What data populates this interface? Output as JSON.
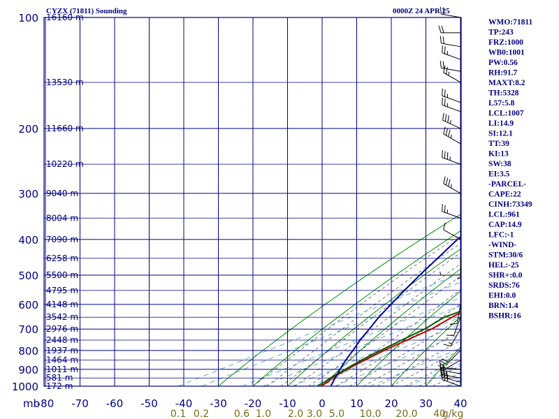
{
  "header": {
    "station": "CYZX (71811) Sounding",
    "time": "0000Z 24 APR 25"
  },
  "chart_data": {
    "type": "line",
    "title": "CYZX (71811) Sounding",
    "subtitle": "0000Z 24 APR 25",
    "x_axis_label": "mb",
    "y_scale": "log-pressure",
    "x_range": [
      -80,
      40
    ],
    "y_range_mb": [
      1000,
      100
    ],
    "grid": true,
    "pressure_ticks": [
      100,
      200,
      300,
      400,
      500,
      600,
      700,
      800,
      900,
      1000
    ],
    "pressure_tick_labels": [
      "100",
      "200",
      "300",
      "400",
      "500",
      "600",
      "700",
      "800",
      "900",
      "1000"
    ],
    "temperature_ticks": [
      -80,
      -70,
      -60,
      -50,
      -40,
      -30,
      -20,
      -10,
      0,
      10,
      20,
      30,
      40
    ],
    "temperature_tick_labels": [
      "-80",
      "-70",
      "-60",
      "-50",
      "-40",
      "-30",
      "-20",
      "-10",
      "0",
      "10",
      "20",
      "30",
      "40"
    ],
    "mixing_ratio_labels": [
      "0.1",
      "0.2",
      "0.6",
      "1.0",
      "2.0",
      "3.0",
      "5.0",
      "10.0",
      "20.0",
      "40",
      "g/kg"
    ],
    "height_labels": [
      {
        "p": 100,
        "label": "16160 m"
      },
      {
        "p": 150,
        "label": "13530 m"
      },
      {
        "p": 200,
        "label": "11660 m"
      },
      {
        "p": 250,
        "label": "10220 m"
      },
      {
        "p": 300,
        "label": "9040 m"
      },
      {
        "p": 350,
        "label": "8004 m"
      },
      {
        "p": 400,
        "label": "7090 m"
      },
      {
        "p": 450,
        "label": "6258 m"
      },
      {
        "p": 500,
        "label": "5500 m"
      },
      {
        "p": 550,
        "label": "4795 m"
      },
      {
        "p": 600,
        "label": "4148 m"
      },
      {
        "p": 650,
        "label": "3542 m"
      },
      {
        "p": 700,
        "label": "2976 m"
      },
      {
        "p": 750,
        "label": "2448 m"
      },
      {
        "p": 800,
        "label": "1937 m"
      },
      {
        "p": 850,
        "label": "1464 m"
      },
      {
        "p": 900,
        "label": "1011 m"
      },
      {
        "p": 950,
        "label": "581 m"
      },
      {
        "p": 1000,
        "label": "172 m"
      }
    ],
    "series": [
      {
        "name": "Temperature",
        "color": "#c00000",
        "points": [
          {
            "p": 1000,
            "t": -0.5
          },
          {
            "p": 975,
            "t": -1.5
          },
          {
            "p": 950,
            "t": -3.5
          },
          {
            "p": 900,
            "t": -6
          },
          {
            "p": 850,
            "t": -8
          },
          {
            "p": 800,
            "t": -10
          },
          {
            "p": 750,
            "t": -11.5
          },
          {
            "p": 700,
            "t": -13
          },
          {
            "p": 670,
            "t": -15
          },
          {
            "p": 640,
            "t": -17
          },
          {
            "p": 600,
            "t": -16.5
          },
          {
            "p": 550,
            "t": -21
          },
          {
            "p": 500,
            "t": -26
          },
          {
            "p": 450,
            "t": -31.5
          },
          {
            "p": 400,
            "t": -36.5
          },
          {
            "p": 380,
            "t": -39
          },
          {
            "p": 350,
            "t": -43.5
          },
          {
            "p": 320,
            "t": -49
          },
          {
            "p": 300,
            "t": -51.5
          },
          {
            "p": 280,
            "t": -54
          },
          {
            "p": 260,
            "t": -56.5
          },
          {
            "p": 240,
            "t": -57.5
          },
          {
            "p": 220,
            "t": -56.5
          },
          {
            "p": 200,
            "t": -55
          },
          {
            "p": 180,
            "t": -54
          },
          {
            "p": 170,
            "t": -55
          },
          {
            "p": 160,
            "t": -54.5
          },
          {
            "p": 150,
            "t": -56
          },
          {
            "p": 140,
            "t": -57
          },
          {
            "p": 130,
            "t": -57
          },
          {
            "p": 120,
            "t": -57.5
          },
          {
            "p": 110,
            "t": -58
          },
          {
            "p": 100,
            "t": -59
          }
        ]
      },
      {
        "name": "Dewpoint",
        "color": "#006000",
        "points": [
          {
            "p": 1000,
            "t": -1.5
          },
          {
            "p": 975,
            "t": -2.5
          },
          {
            "p": 950,
            "t": -4
          },
          {
            "p": 900,
            "t": -6.5
          },
          {
            "p": 850,
            "t": -9
          },
          {
            "p": 800,
            "t": -11
          },
          {
            "p": 750,
            "t": -13
          },
          {
            "p": 700,
            "t": -15
          },
          {
            "p": 650,
            "t": -18.5
          },
          {
            "p": 600,
            "t": -18.5
          },
          {
            "p": 550,
            "t": -24
          },
          {
            "p": 500,
            "t": -28
          },
          {
            "p": 450,
            "t": -33.5
          },
          {
            "p": 400,
            "t": -40
          },
          {
            "p": 380,
            "t": -42.5
          },
          {
            "p": 350,
            "t": -48
          },
          {
            "p": 320,
            "t": -53
          },
          {
            "p": 305,
            "t": -56
          },
          {
            "p": 300,
            "t": -57
          },
          {
            "p": 290,
            "t": -59
          },
          {
            "p": 270,
            "t": -66
          },
          {
            "p": 255,
            "t": -69.5
          },
          {
            "p": 240,
            "t": -70
          },
          {
            "p": 220,
            "t": -74
          },
          {
            "p": 200,
            "t": -80
          }
        ]
      },
      {
        "name": "Parcel",
        "color": "#0000a0",
        "points": [
          {
            "p": 1000,
            "t": 2.5
          },
          {
            "p": 961,
            "t": -1.5
          },
          {
            "p": 900,
            "t": -8
          },
          {
            "p": 850,
            "t": -13.5
          },
          {
            "p": 800,
            "t": -19
          },
          {
            "p": 750,
            "t": -25
          },
          {
            "p": 700,
            "t": -31
          },
          {
            "p": 650,
            "t": -37.5
          },
          {
            "p": 600,
            "t": -44
          },
          {
            "p": 550,
            "t": -51
          },
          {
            "p": 500,
            "t": -58.5
          },
          {
            "p": 450,
            "t": -66.5
          },
          {
            "p": 400,
            "t": -75.5
          },
          {
            "p": 350,
            "t": -85
          },
          {
            "p": 300,
            "t": -96
          },
          {
            "p": 260,
            "t": -106
          }
        ]
      }
    ],
    "wind_barbs": [
      {
        "p": 1000,
        "dir": 290,
        "kt": 30
      },
      {
        "p": 975,
        "dir": 285,
        "kt": 30
      },
      {
        "p": 950,
        "dir": 280,
        "kt": 25
      },
      {
        "p": 925,
        "dir": 280,
        "kt": 20
      },
      {
        "p": 900,
        "dir": 275,
        "kt": 15
      },
      {
        "p": 850,
        "dir": 240,
        "kt": 20
      },
      {
        "p": 800,
        "dir": 225,
        "kt": 20
      },
      {
        "p": 700,
        "dir": 210,
        "kt": 15
      },
      {
        "p": 650,
        "dir": 200,
        "kt": 10
      },
      {
        "p": 600,
        "dir": 190,
        "kt": 10
      },
      {
        "p": 500,
        "dir": 270,
        "kt": 5
      },
      {
        "p": 450,
        "dir": 180,
        "kt": 5
      },
      {
        "p": 400,
        "dir": 300,
        "kt": 10
      },
      {
        "p": 350,
        "dir": 290,
        "kt": 25
      },
      {
        "p": 300,
        "dir": 300,
        "kt": 35
      },
      {
        "p": 250,
        "dir": 290,
        "kt": 35
      },
      {
        "p": 220,
        "dir": 300,
        "kt": 35
      },
      {
        "p": 200,
        "dir": 295,
        "kt": 35
      },
      {
        "p": 180,
        "dir": 290,
        "kt": 25
      },
      {
        "p": 170,
        "dir": 290,
        "kt": 25
      },
      {
        "p": 150,
        "dir": 300,
        "kt": 25
      },
      {
        "p": 140,
        "dir": 280,
        "kt": 20
      },
      {
        "p": 130,
        "dir": 290,
        "kt": 25
      },
      {
        "p": 120,
        "dir": 280,
        "kt": 20
      },
      {
        "p": 110,
        "dir": 270,
        "kt": 20
      },
      {
        "p": 100,
        "dir": 280,
        "kt": 20
      }
    ]
  },
  "indices": [
    "WMO:71811",
    "TP:243",
    "FRZ:1000",
    "WB0:1001",
    "PW:0.56",
    "RH:91.7",
    "MAXT:8.2",
    "TH:5328",
    "L57:5.8",
    "LCL:1007",
    "LI:14.9",
    "SI:12.1",
    "TT:39",
    "KI:13",
    "SW:38",
    "EI:3.5",
    "-PARCEL-",
    "CAPE:22",
    "CINH:73349",
    "LCL:961",
    "CAP:14.9",
    "LFC:-1",
    "-WIND-",
    "STM:30/6",
    "HEL:-25",
    "SHR+:0.0",
    "SRDS:76",
    "EHI:0.0",
    "BRN:1.4",
    "BSHR:16"
  ],
  "colors": {
    "grid": "#000080",
    "dry_adiabat": "#009000",
    "moist_adiabat": "#505050",
    "mixing_ratio": "#3399cc",
    "temperature": "#c00000",
    "dewpoint": "#006000",
    "parcel": "#0000a0",
    "mixing_ratio_label": "#7a6a1a"
  }
}
